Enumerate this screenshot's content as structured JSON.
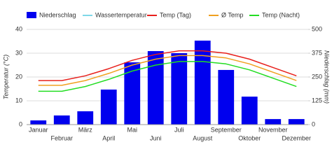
{
  "chart_data": {
    "type": "bar-line",
    "categories": [
      "Januar",
      "Februar",
      "März",
      "April",
      "Mai",
      "Juni",
      "Juli",
      "August",
      "September",
      "Oktober",
      "November",
      "Dezember"
    ],
    "series": [
      {
        "name": "Niederschlag",
        "type": "bar",
        "axis": "y2",
        "color": "#0000ee",
        "values": [
          22,
          48,
          70,
          184,
          327,
          386,
          375,
          441,
          287,
          147,
          29,
          29
        ]
      },
      {
        "name": "Wassertemperatur",
        "type": "line",
        "color": "#7fd8e8",
        "values": [
          null,
          null,
          null,
          null,
          null,
          null,
          null,
          null,
          null,
          null,
          null,
          null
        ]
      },
      {
        "name": "Temp (Tag)",
        "type": "line",
        "color": "#e8201c",
        "values": [
          18.5,
          18.5,
          20.5,
          23.5,
          27,
          29.5,
          31,
          31,
          30,
          27.5,
          24,
          20.5
        ]
      },
      {
        "name": "Ø Temp",
        "type": "line",
        "color": "#f0a020",
        "values": [
          16.5,
          16.5,
          18.5,
          21.5,
          25,
          27.5,
          29,
          29,
          28,
          25.5,
          22,
          18.5
        ]
      },
      {
        "name": "Temp (Nacht)",
        "type": "line",
        "color": "#22dd22",
        "values": [
          14,
          14,
          16,
          19,
          22.5,
          25,
          26.5,
          26.5,
          25.5,
          23,
          19.5,
          16
        ]
      }
    ],
    "y_label": "Temperatur (°C)",
    "y2_label": "Niederschlag (mm)",
    "ylim": [
      0,
      40
    ],
    "yticks": [
      0,
      10,
      20,
      30,
      40
    ],
    "y2lim": [
      0,
      500
    ],
    "y2ticks": [
      0,
      125,
      250,
      375,
      500
    ],
    "grid": true
  }
}
